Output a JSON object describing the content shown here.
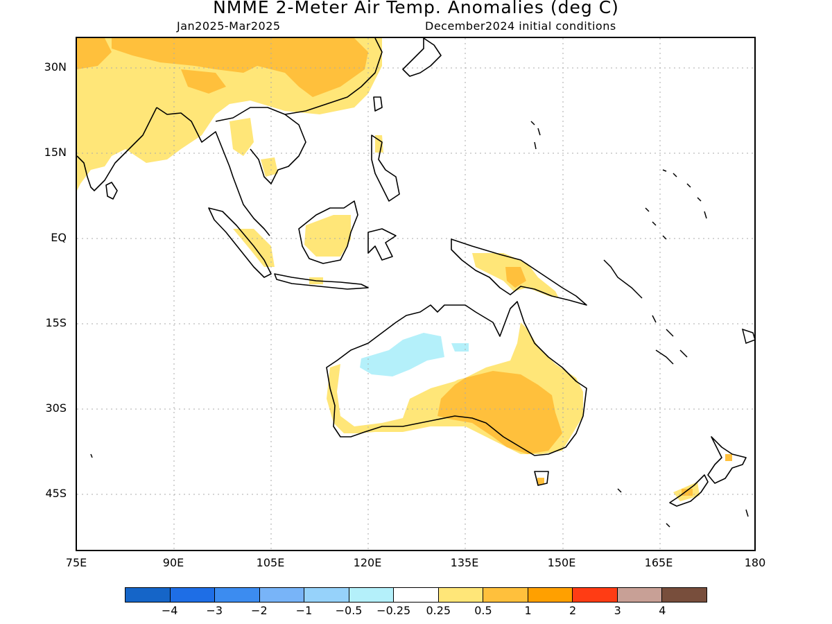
{
  "title": "NMME 2-Meter Air Temp. Anomalies (deg C)",
  "subtitle_left": "Jan2025-Mar2025",
  "subtitle_right": "December2024 initial conditions",
  "map": {
    "lon_range": [
      75,
      180
    ],
    "lat_range": [
      -50,
      35
    ],
    "y_ticks": [
      "30N",
      "15N",
      "EQ",
      "15S",
      "30S",
      "45S"
    ],
    "x_ticks": [
      "75E",
      "90E",
      "105E",
      "120E",
      "135E",
      "150E",
      "165E",
      "180"
    ],
    "grid": true
  },
  "colorbar": {
    "colors": [
      "#1565c8",
      "#1e6ee6",
      "#3c8cf0",
      "#78b4f8",
      "#96d2fa",
      "#b4f0fa",
      "#ffffff",
      "#ffe678",
      "#ffc03c",
      "#ffa000",
      "#ff3c14",
      "#c8a096",
      "#784e3c"
    ],
    "labels": [
      "-4",
      "-3",
      "-2",
      "-1",
      "-0.5",
      "-0.25",
      "0.25",
      "0.5",
      "1",
      "2",
      "3",
      "4"
    ]
  }
}
